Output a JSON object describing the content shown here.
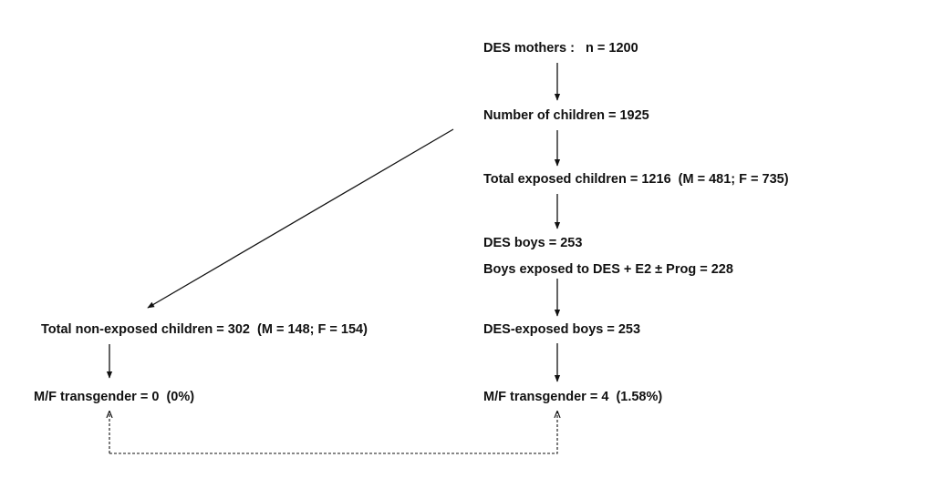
{
  "nodes": [
    {
      "label": "DES mothers :   n = 1200"
    },
    {
      "label": "Number of children = 1925"
    },
    {
      "label": "Total exposed children = 1216  (M = 481; F = 735)"
    },
    {
      "label": "DES boys = 253"
    },
    {
      "label": "Boys exposed to DES + E2 ± Prog = 228"
    },
    {
      "label": "DES-exposed boys = 253"
    },
    {
      "label": "M/F transgender = 4  (1.58%)"
    },
    {
      "label": "Total non-exposed children = 302  (M = 148; F = 154)"
    },
    {
      "label": "M/F transgender = 0  (0%)"
    }
  ]
}
